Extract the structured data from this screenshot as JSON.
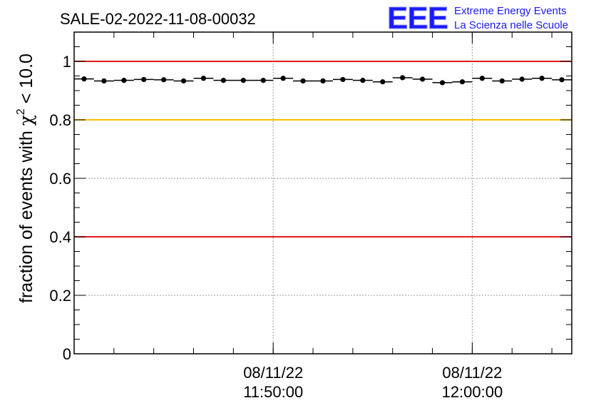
{
  "header": {
    "title": "SALE-02-2022-11-08-00032",
    "logo": {
      "mark": "EEE",
      "line1": "Extreme Energy Events",
      "line2": "La Scienza nelle Scuole",
      "color": "#1a1aff"
    }
  },
  "chart_data": {
    "type": "scatter",
    "ylabel_prefix": "fraction of events with ",
    "ylabel_symbol": "χ",
    "ylabel_sup": "2",
    "ylabel_suffix": " < 10.0",
    "ylim": [
      0,
      1.1
    ],
    "yticks": [
      {
        "value": 0,
        "label": "0"
      },
      {
        "value": 0.2,
        "label": "0.2"
      },
      {
        "value": 0.4,
        "label": "0.4"
      },
      {
        "value": 0.6,
        "label": "0.6"
      },
      {
        "value": 0.8,
        "label": "0.8"
      },
      {
        "value": 1.0,
        "label": "1"
      }
    ],
    "xlim_minutes": [
      -2.75,
      22.25
    ],
    "xticks": [
      {
        "minute": 7.25,
        "date": "08/11/22",
        "time": "11:50:00"
      },
      {
        "minute": 17.25,
        "date": "08/11/22",
        "time": "12:00:00"
      }
    ],
    "grid": true,
    "reference_lines": [
      {
        "y": 1.0,
        "color": "#e31a1c"
      },
      {
        "y": 0.8,
        "color": "#ffc000"
      },
      {
        "y": 0.4,
        "color": "#e31a1c"
      }
    ],
    "points": {
      "x_minutes": [
        -2.25,
        -1.25,
        -0.25,
        0.75,
        1.75,
        2.75,
        3.75,
        4.75,
        5.75,
        6.75,
        7.75,
        8.75,
        9.75,
        10.75,
        11.75,
        12.75,
        13.75,
        14.75,
        15.75,
        16.75,
        17.75,
        18.75,
        19.75,
        20.75,
        21.75
      ],
      "y": [
        0.94,
        0.933,
        0.935,
        0.938,
        0.937,
        0.933,
        0.942,
        0.935,
        0.935,
        0.935,
        0.942,
        0.933,
        0.933,
        0.938,
        0.935,
        0.93,
        0.944,
        0.939,
        0.927,
        0.93,
        0.942,
        0.933,
        0.939,
        0.942,
        0.937
      ]
    }
  }
}
